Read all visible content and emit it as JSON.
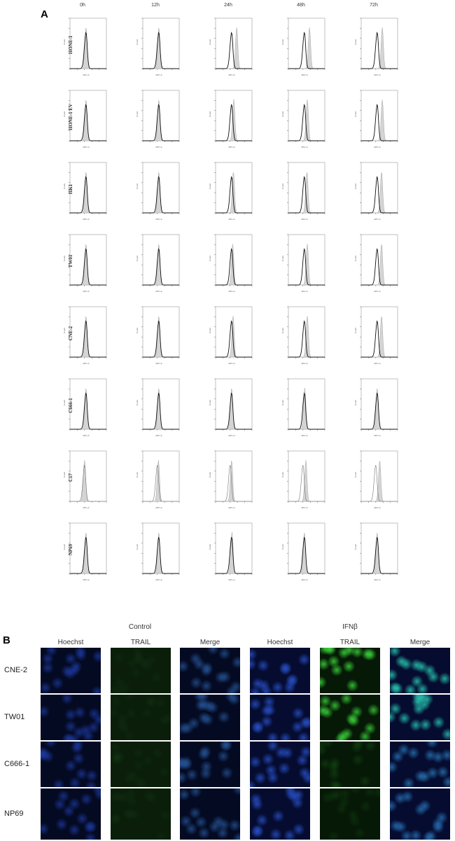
{
  "panel_a": {
    "letter": "A",
    "timepoints": [
      "0h",
      "12h",
      "24h",
      "48h",
      "72h"
    ],
    "xlabel": "APC-A",
    "ylabel": "Count",
    "rows": [
      {
        "label": "HONE-1",
        "control_peak": 2.2,
        "treated_peaks": [
          2.2,
          2.2,
          2.9,
          2.9,
          2.9
        ]
      },
      {
        "label": "HONE-1 EV",
        "control_peak": 2.2,
        "treated_peaks": [
          2.2,
          2.2,
          2.5,
          2.6,
          2.9
        ]
      },
      {
        "label": "HK1",
        "control_peak": 2.2,
        "treated_peaks": [
          2.2,
          2.2,
          2.45,
          2.55,
          2.8
        ]
      },
      {
        "label": "TW01",
        "control_peak": 2.2,
        "treated_peaks": [
          2.2,
          2.2,
          2.35,
          2.6,
          2.8
        ]
      },
      {
        "label": "CNE-2",
        "control_peak": 2.2,
        "treated_peaks": [
          2.2,
          2.2,
          2.4,
          2.6,
          2.8
        ]
      },
      {
        "label": "C666-1",
        "control_peak": 2.2,
        "treated_peaks": [
          2.2,
          2.2,
          2.2,
          2.25,
          2.2
        ]
      },
      {
        "label": "C17",
        "control_peak": 2.0,
        "treated_peaks": [
          2.0,
          2.15,
          2.2,
          2.4,
          2.55
        ]
      },
      {
        "label": "NP69",
        "control_peak": 2.2,
        "treated_peaks": [
          2.2,
          2.2,
          2.25,
          2.2,
          2.2
        ]
      }
    ]
  },
  "panel_b": {
    "letter": "B",
    "groups": [
      "Control",
      "IFNβ"
    ],
    "channels": [
      "Hoechst",
      "TRAIL",
      "Merge",
      "Hoechst",
      "TRAIL",
      "Merge"
    ],
    "rows": [
      {
        "label": "CNE-2",
        "trail_ifn_intensity": 0.9
      },
      {
        "label": "TW01",
        "trail_ifn_intensity": 0.85
      },
      {
        "label": "C666-1",
        "trail_ifn_intensity": 0.15
      },
      {
        "label": "NP69",
        "trail_ifn_intensity": 0.1
      }
    ],
    "colors": {
      "hoechst": "#1a3a9a",
      "trail": "#3ad03a",
      "merge": "#3aa0a0"
    }
  }
}
